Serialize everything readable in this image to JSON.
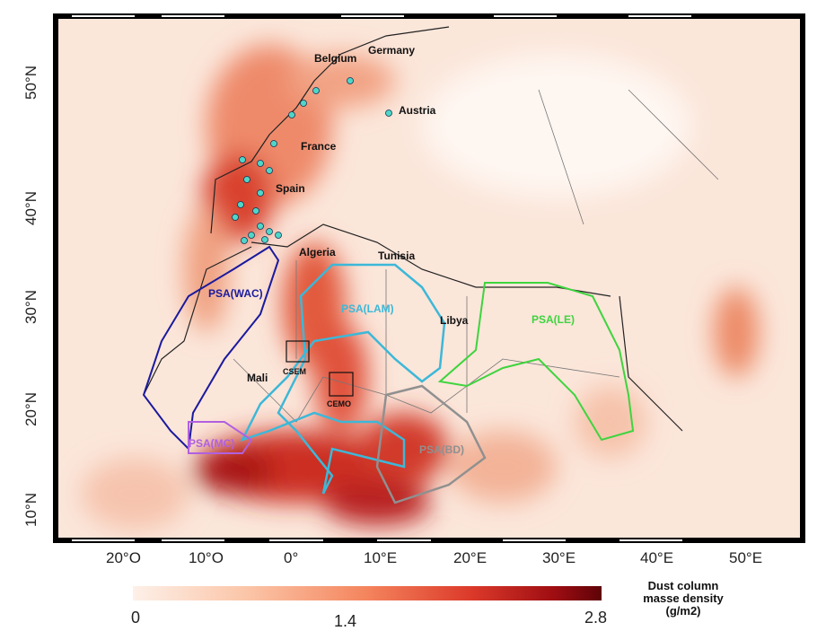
{
  "map": {
    "lat_ticks": [
      "50°N",
      "40°N",
      "30°N",
      "20°N",
      "10°N"
    ],
    "lon_ticks": [
      "20°O",
      "10°O",
      "0°",
      "10°E",
      "20°E",
      "30°E",
      "40°E",
      "50°E"
    ],
    "countries": [
      "Belgium",
      "Germany",
      "Austria",
      "France",
      "Spain",
      "Algeria",
      "Tunisia",
      "Libya",
      "Mali"
    ],
    "regions": [
      {
        "name": "PSA(WAC)",
        "color": "#1a1a9e"
      },
      {
        "name": "PSA(LAM)",
        "color": "#3cb8d8"
      },
      {
        "name": "PSA(LE)",
        "color": "#3ed43e"
      },
      {
        "name": "PSA(MC)",
        "color": "#b060e0"
      },
      {
        "name": "PSA(BD)",
        "color": "#909090"
      }
    ],
    "boxes": [
      "CSEM",
      "CEMO"
    ]
  },
  "colorbar": {
    "title_lines": [
      "Dust column",
      "masse density",
      "(g/m2)"
    ],
    "min": "0",
    "mid": "1.4",
    "max": "2.8",
    "colors": [
      "#fdf0e8",
      "#f4845d",
      "#5e0308"
    ]
  }
}
